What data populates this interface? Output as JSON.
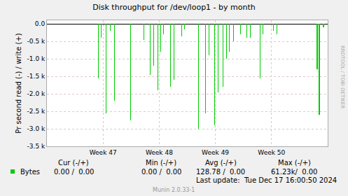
{
  "chart_data": {
    "type": "bar",
    "title": "Disk throughput for /dev/loop1 - by month",
    "y_label": "Pr second read (-) / write (+)",
    "x": [
      6.39,
      6.74,
      7.35,
      7.87,
      8.4,
      10.41,
      12.07,
      12.86,
      13.3,
      13.82,
      14.17,
      14.52,
      15.4,
      15.84,
      16.8,
      17.15,
      18.9,
      19.77,
      20.21,
      20.91,
      21.35,
      21.96,
      22.4,
      22.75,
      23.27,
      24.15,
      24.93,
      25.37,
      26.6,
      26.95,
      28.26,
      28.7,
      33.68,
      33.95,
      34.47
    ],
    "series": [
      {
        "name": "Bytes",
        "color": "#00cc00",
        "values": [
          -1550,
          -400,
          -2550,
          -200,
          -2200,
          -2750,
          -450,
          -1450,
          -1200,
          -1900,
          -800,
          -300,
          -1800,
          -1600,
          -350,
          -150,
          -3000,
          -2550,
          -900,
          -2900,
          -1950,
          -1800,
          -1000,
          -800,
          -500,
          -300,
          -400,
          -400,
          -1550,
          -300,
          -200,
          -300,
          -1300,
          -2600,
          -100
        ]
      }
    ],
    "xlim": [
      0,
      35
    ],
    "xticks": [
      {
        "value": 7,
        "label": "Week 47"
      },
      {
        "value": 14,
        "label": "Week 48"
      },
      {
        "value": 21,
        "label": "Week 49"
      },
      {
        "value": 28,
        "label": "Week 50"
      }
    ],
    "ylim": [
      -3500,
      100
    ],
    "yticks": [
      {
        "value": 0,
        "label": "0.0"
      },
      {
        "value": -500,
        "label": "-0.5 k"
      },
      {
        "value": -1000,
        "label": "-1.0 k"
      },
      {
        "value": -1500,
        "label": "-1.5 k"
      },
      {
        "value": -2000,
        "label": "-2.0 k"
      },
      {
        "value": -2500,
        "label": "-2.5 k"
      },
      {
        "value": -3000,
        "label": "-3.0 k"
      },
      {
        "value": -3500,
        "label": "-3.5 k"
      }
    ],
    "grid": true
  },
  "footer": {
    "headers": [
      "Cur (-/+)",
      "Min (-/+)",
      "Avg (-/+)",
      "Max (-/+)"
    ],
    "values": [
      "0.00 /  0.00",
      "0.00 /  0.00",
      "128.78 /  0.00",
      "61.23k/  0.00"
    ],
    "last_update": "Last update:  Tue Dec 17 16:00:50 2024",
    "version": "Munin 2.0.33-1",
    "watermark": "RRDTOOL / TOBI OETIKER"
  }
}
